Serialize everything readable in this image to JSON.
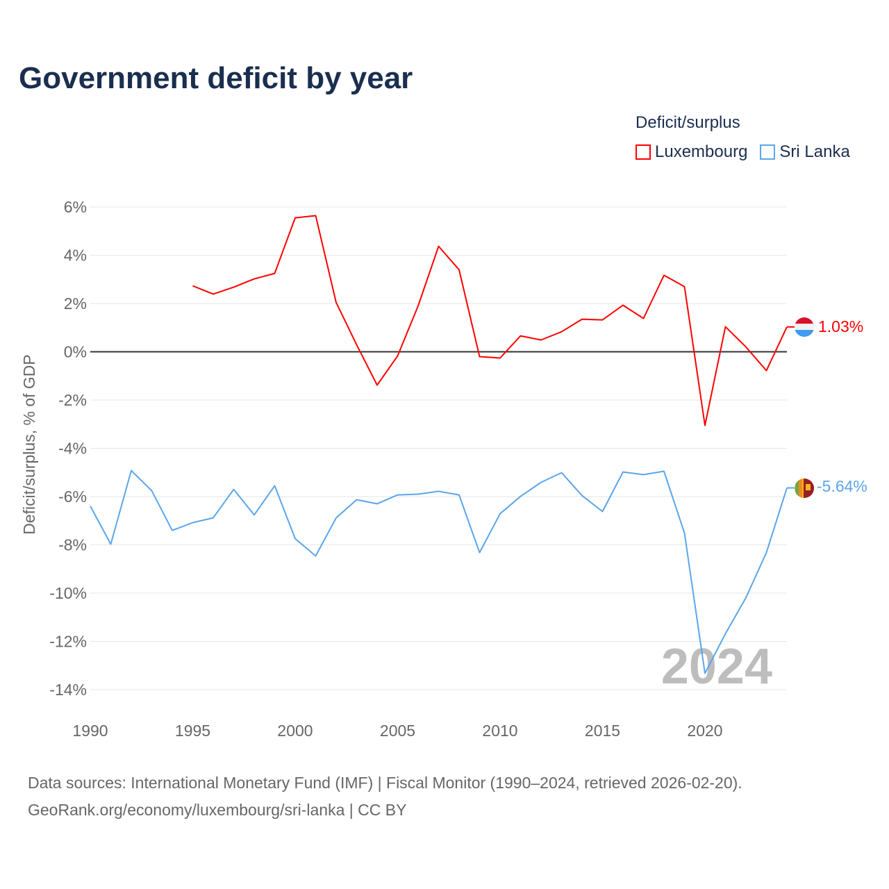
{
  "title": "Government deficit by year",
  "legend": {
    "title": "Deficit/surplus",
    "items": [
      {
        "name": "Luxembourg",
        "color": "#ff0000"
      },
      {
        "name": "Sri Lanka",
        "color": "#5aa5ea"
      }
    ]
  },
  "watermark_year": "2024",
  "source_lines": [
    "Data sources: International Monetary Fund (IMF) | Fiscal Monitor (1990–2024, retrieved 2026-02-20).",
    "GeoRank.org/economy/luxembourg/sri-lanka | CC BY"
  ],
  "chart_data": {
    "type": "line",
    "title": "Government deficit by year",
    "xlabel": "",
    "ylabel": "Deficit/surplus, % of GDP",
    "xlim": [
      1990,
      2024
    ],
    "ylim": [
      -14,
      6
    ],
    "xticks": [
      1990,
      1995,
      2000,
      2005,
      2010,
      2015,
      2020
    ],
    "yticks": [
      6,
      4,
      2,
      0,
      -2,
      -4,
      -6,
      -8,
      -10,
      -12,
      -14
    ],
    "grid": true,
    "legend_position": "top-right",
    "series": [
      {
        "name": "Luxembourg",
        "color": "#ff0000",
        "end_label": "1.03%",
        "start": 1995,
        "values": [
          2.73,
          2.39,
          2.68,
          3.02,
          3.25,
          5.55,
          5.64,
          2.04,
          0.29,
          -1.38,
          -0.17,
          1.9,
          4.37,
          3.4,
          -0.2,
          -0.26,
          0.66,
          0.49,
          0.83,
          1.35,
          1.32,
          1.93,
          1.38,
          3.17,
          2.7,
          -3.05,
          1.04,
          0.2,
          -0.78,
          1.03
        ]
      },
      {
        "name": "Sri Lanka",
        "color": "#5aa5ea",
        "end_label": "-5.64%",
        "start": 1990,
        "values": [
          -6.39,
          -7.97,
          -4.92,
          -5.76,
          -7.4,
          -7.08,
          -6.88,
          -5.7,
          -6.76,
          -5.55,
          -7.74,
          -8.46,
          -6.88,
          -6.13,
          -6.3,
          -5.93,
          -5.9,
          -5.78,
          -5.93,
          -8.32,
          -6.71,
          -5.99,
          -5.41,
          -5.01,
          -5.96,
          -6.62,
          -4.98,
          -5.09,
          -4.95,
          -7.51,
          -13.32,
          -11.68,
          -10.19,
          -8.32,
          -5.64
        ]
      }
    ]
  }
}
